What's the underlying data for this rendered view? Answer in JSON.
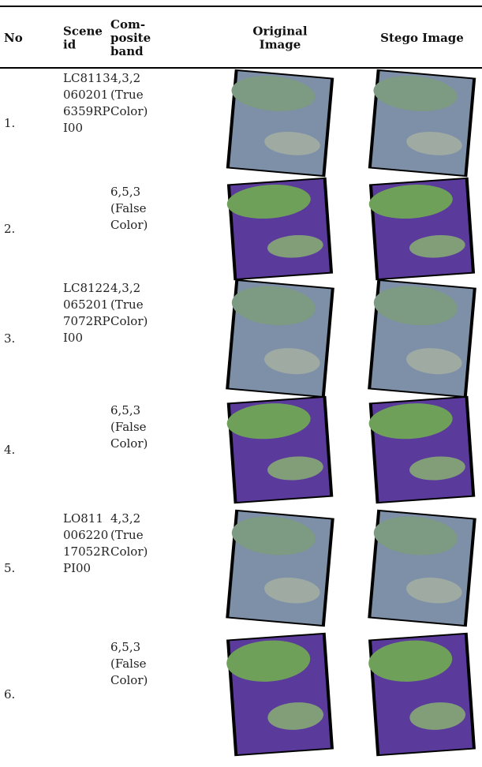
{
  "table": {
    "header": [
      [
        "No"
      ],
      [
        "Scene",
        "id"
      ],
      [
        "Com-",
        "posite",
        "band"
      ],
      [
        "Original",
        "Image"
      ],
      [
        "Stego Image"
      ]
    ],
    "rows": [
      {
        "no": "1.",
        "scene": [
          "LC8113",
          "060201",
          "6359RP",
          "I00"
        ],
        "band": [
          "4,3,2",
          "(True",
          "Color)"
        ]
      },
      {
        "no": "2.",
        "scene": [],
        "band": [
          "6,5,3",
          "(False",
          "Color)"
        ]
      },
      {
        "no": "3.",
        "scene": [
          "LC8122",
          "065201",
          "7072RP",
          "I00"
        ],
        "band": [
          "4,3,2",
          "(True",
          "Color)"
        ]
      },
      {
        "no": "4.",
        "scene": [],
        "band": [
          "6,5,3",
          "(False",
          "Color)"
        ]
      },
      {
        "no": "5.",
        "scene": [
          "LO811",
          "006220",
          "17052R",
          "PI00"
        ],
        "band": [
          "4,3,2",
          "(True",
          "Color)"
        ]
      },
      {
        "no": "6.",
        "scene": [],
        "band": [
          "6,5,3",
          "(False",
          "Color)"
        ]
      }
    ]
  }
}
